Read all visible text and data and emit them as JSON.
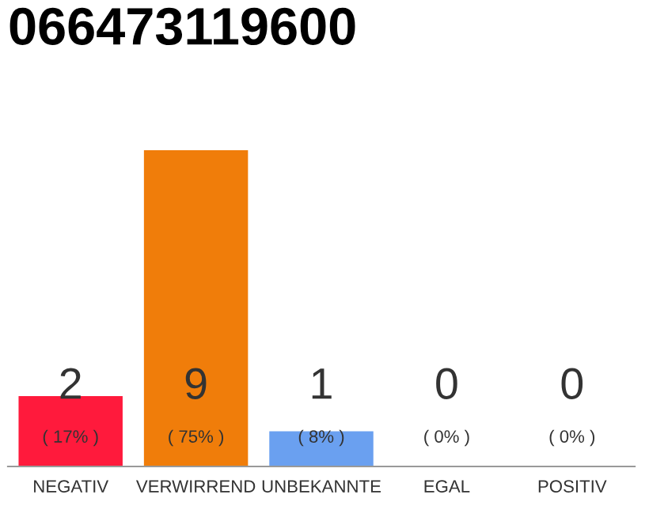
{
  "chart_data": {
    "type": "bar",
    "title": "066473119600",
    "categories": [
      "NEGATIV",
      "VERWIRREND",
      "UNBEKANNTE",
      "EGAL",
      "POSITIV"
    ],
    "values": [
      2,
      9,
      1,
      0,
      0
    ],
    "colors": [
      "#ff1a3c",
      "#f07d0a",
      "#6aa0f0",
      "#c8c8c8",
      "#c8c8c8"
    ],
    "data_labels": true,
    "annotations": [
      "( 17% )",
      "( 75% )",
      "( 8% )",
      "( 0% )",
      "( 0% )"
    ],
    "grid": false,
    "legend": false
  }
}
